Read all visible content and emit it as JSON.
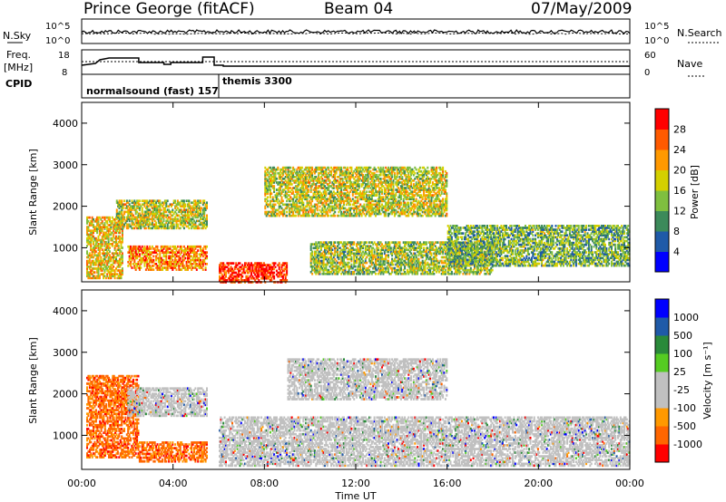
{
  "header": {
    "station": "Prince George (fitACF)",
    "beam": "Beam 04",
    "date": "07/May/2009"
  },
  "status_panels": {
    "nsky_label": "N.Sky",
    "nsearch_label": "N.Search",
    "log_ticks": [
      "10^5",
      "10^0"
    ],
    "freq_label_1": "Freq.",
    "freq_label_2": "[MHz]",
    "freq_ticks": [
      "18",
      "8"
    ],
    "nave_label": "Nave",
    "nave_ticks": [
      "60",
      "0"
    ],
    "cpid_label": "CPID",
    "cpid_1": "normalsound (fast) 157",
    "cpid_2": "themis 3300"
  },
  "colors": {
    "power": [
      "#0000ff",
      "#1f5aa8",
      "#3c8a5a",
      "#7fbf3f",
      "#d4d000",
      "#ff9900",
      "#ff5a00",
      "#ff0000"
    ],
    "velocity": [
      "#ff0000",
      "#ff6600",
      "#ff9900",
      "#c0c0c0",
      "#c0c0c0",
      "#55cc22",
      "#2a8a3a",
      "#1f5aa8",
      "#0000ff"
    ]
  },
  "chart_data": [
    {
      "type": "heatmap",
      "title": "Power",
      "quantity": "Power",
      "xlabel": "Time UT",
      "ylabel": "Slant Range [km]",
      "x_ticks": [
        "00:00",
        "04:00",
        "08:00",
        "12:00",
        "16:00",
        "20:00",
        "00:00"
      ],
      "xlim_hours": [
        0,
        24
      ],
      "ylim_km": [
        180,
        4500
      ],
      "y_ticks": [
        1000,
        2000,
        3000,
        4000
      ],
      "colorbar_label": "Power [dB]",
      "colorbar_ticks": [
        "4",
        "8",
        "12",
        "16",
        "20",
        "24",
        "28"
      ],
      "colorbar_range": [
        0,
        30
      ],
      "echo_regions": [
        {
          "t_start": 0.2,
          "t_end": 1.8,
          "r_low": 300,
          "r_high": 1800,
          "level": 18
        },
        {
          "t_start": 1.5,
          "t_end": 5.5,
          "r_low": 1500,
          "r_high": 2200,
          "level": 16
        },
        {
          "t_start": 2.0,
          "t_end": 5.5,
          "r_low": 500,
          "r_high": 1100,
          "level": 22
        },
        {
          "t_start": 6.0,
          "t_end": 9.0,
          "r_low": 200,
          "r_high": 700,
          "level": 28
        },
        {
          "t_start": 8.0,
          "t_end": 16.0,
          "r_low": 1800,
          "r_high": 3000,
          "level": 16
        },
        {
          "t_start": 10.0,
          "t_end": 18.0,
          "r_low": 400,
          "r_high": 1200,
          "level": 14
        },
        {
          "t_start": 16.0,
          "t_end": 24.0,
          "r_low": 600,
          "r_high": 1600,
          "level": 12
        }
      ]
    },
    {
      "type": "heatmap",
      "title": "Velocity",
      "quantity": "Velocity",
      "xlabel": "Time UT",
      "ylabel": "Slant Range [km]",
      "x_ticks": [
        "00:00",
        "04:00",
        "08:00",
        "12:00",
        "16:00",
        "20:00",
        "00:00"
      ],
      "xlim_hours": [
        0,
        24
      ],
      "ylim_km": [
        180,
        4500
      ],
      "y_ticks": [
        1000,
        2000,
        3000,
        4000
      ],
      "colorbar_label": "Velocity [m s⁻¹]",
      "colorbar_ticks": [
        "1000",
        "500",
        "100",
        "25",
        "-25",
        "-100",
        "-500",
        "-1000"
      ],
      "echo_regions": [
        {
          "t_start": 0.2,
          "t_end": 2.5,
          "r_low": 500,
          "r_high": 2500,
          "velocity": -500
        },
        {
          "t_start": 2.0,
          "t_end": 5.5,
          "r_low": 1500,
          "r_high": 2200,
          "velocity": 0
        },
        {
          "t_start": 2.5,
          "t_end": 5.5,
          "r_low": 400,
          "r_high": 900,
          "velocity": -200
        },
        {
          "t_start": 6.0,
          "t_end": 24.0,
          "r_low": 300,
          "r_high": 1500,
          "velocity": 0
        },
        {
          "t_start": 9.0,
          "t_end": 16.0,
          "r_low": 1900,
          "r_high": 2900,
          "velocity": 0
        }
      ]
    }
  ]
}
